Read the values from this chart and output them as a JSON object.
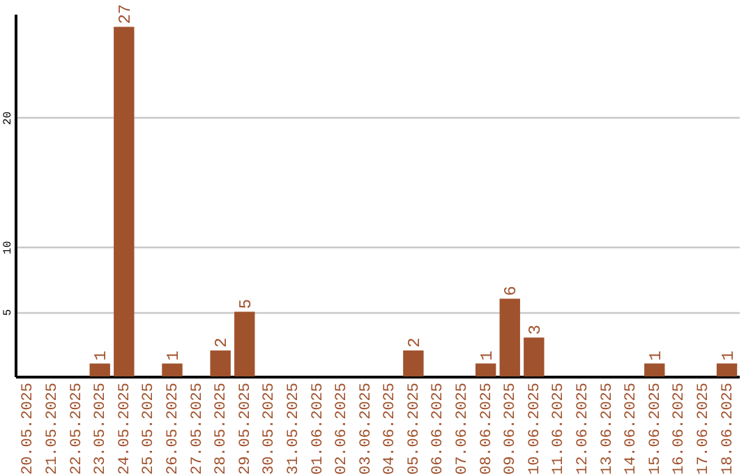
{
  "chart_data": {
    "type": "bar",
    "categories": [
      "20.05.2025",
      "21.05.2025",
      "22.05.2025",
      "23.05.2025",
      "24.05.2025",
      "25.05.2025",
      "26.05.2025",
      "27.05.2025",
      "28.05.2025",
      "29.05.2025",
      "30.05.2025",
      "31.05.2025",
      "01.06.2025",
      "02.06.2025",
      "03.06.2025",
      "04.06.2025",
      "05.06.2025",
      "06.06.2025",
      "07.06.2025",
      "08.06.2025",
      "09.06.2025",
      "10.06.2025",
      "11.06.2025",
      "12.06.2025",
      "13.06.2025",
      "14.06.2025",
      "15.06.2025",
      "16.06.2025",
      "17.06.2025",
      "18.06.2025"
    ],
    "values": [
      0,
      0,
      0,
      1,
      27,
      0,
      1,
      0,
      2,
      5,
      0,
      0,
      0,
      0,
      0,
      0,
      2,
      0,
      0,
      1,
      6,
      3,
      0,
      0,
      0,
      0,
      1,
      0,
      0,
      1
    ],
    "value_labels": [
      null,
      null,
      null,
      "1",
      "27",
      null,
      "1",
      null,
      "2",
      "5",
      null,
      null,
      null,
      null,
      null,
      null,
      "2",
      null,
      null,
      "1",
      "6",
      "3",
      null,
      null,
      null,
      null,
      "1",
      null,
      null,
      "1"
    ],
    "color": "#a0522d",
    "ylim": [
      0,
      28
    ],
    "yticks": [
      5,
      10,
      20
    ],
    "grid": "y"
  }
}
